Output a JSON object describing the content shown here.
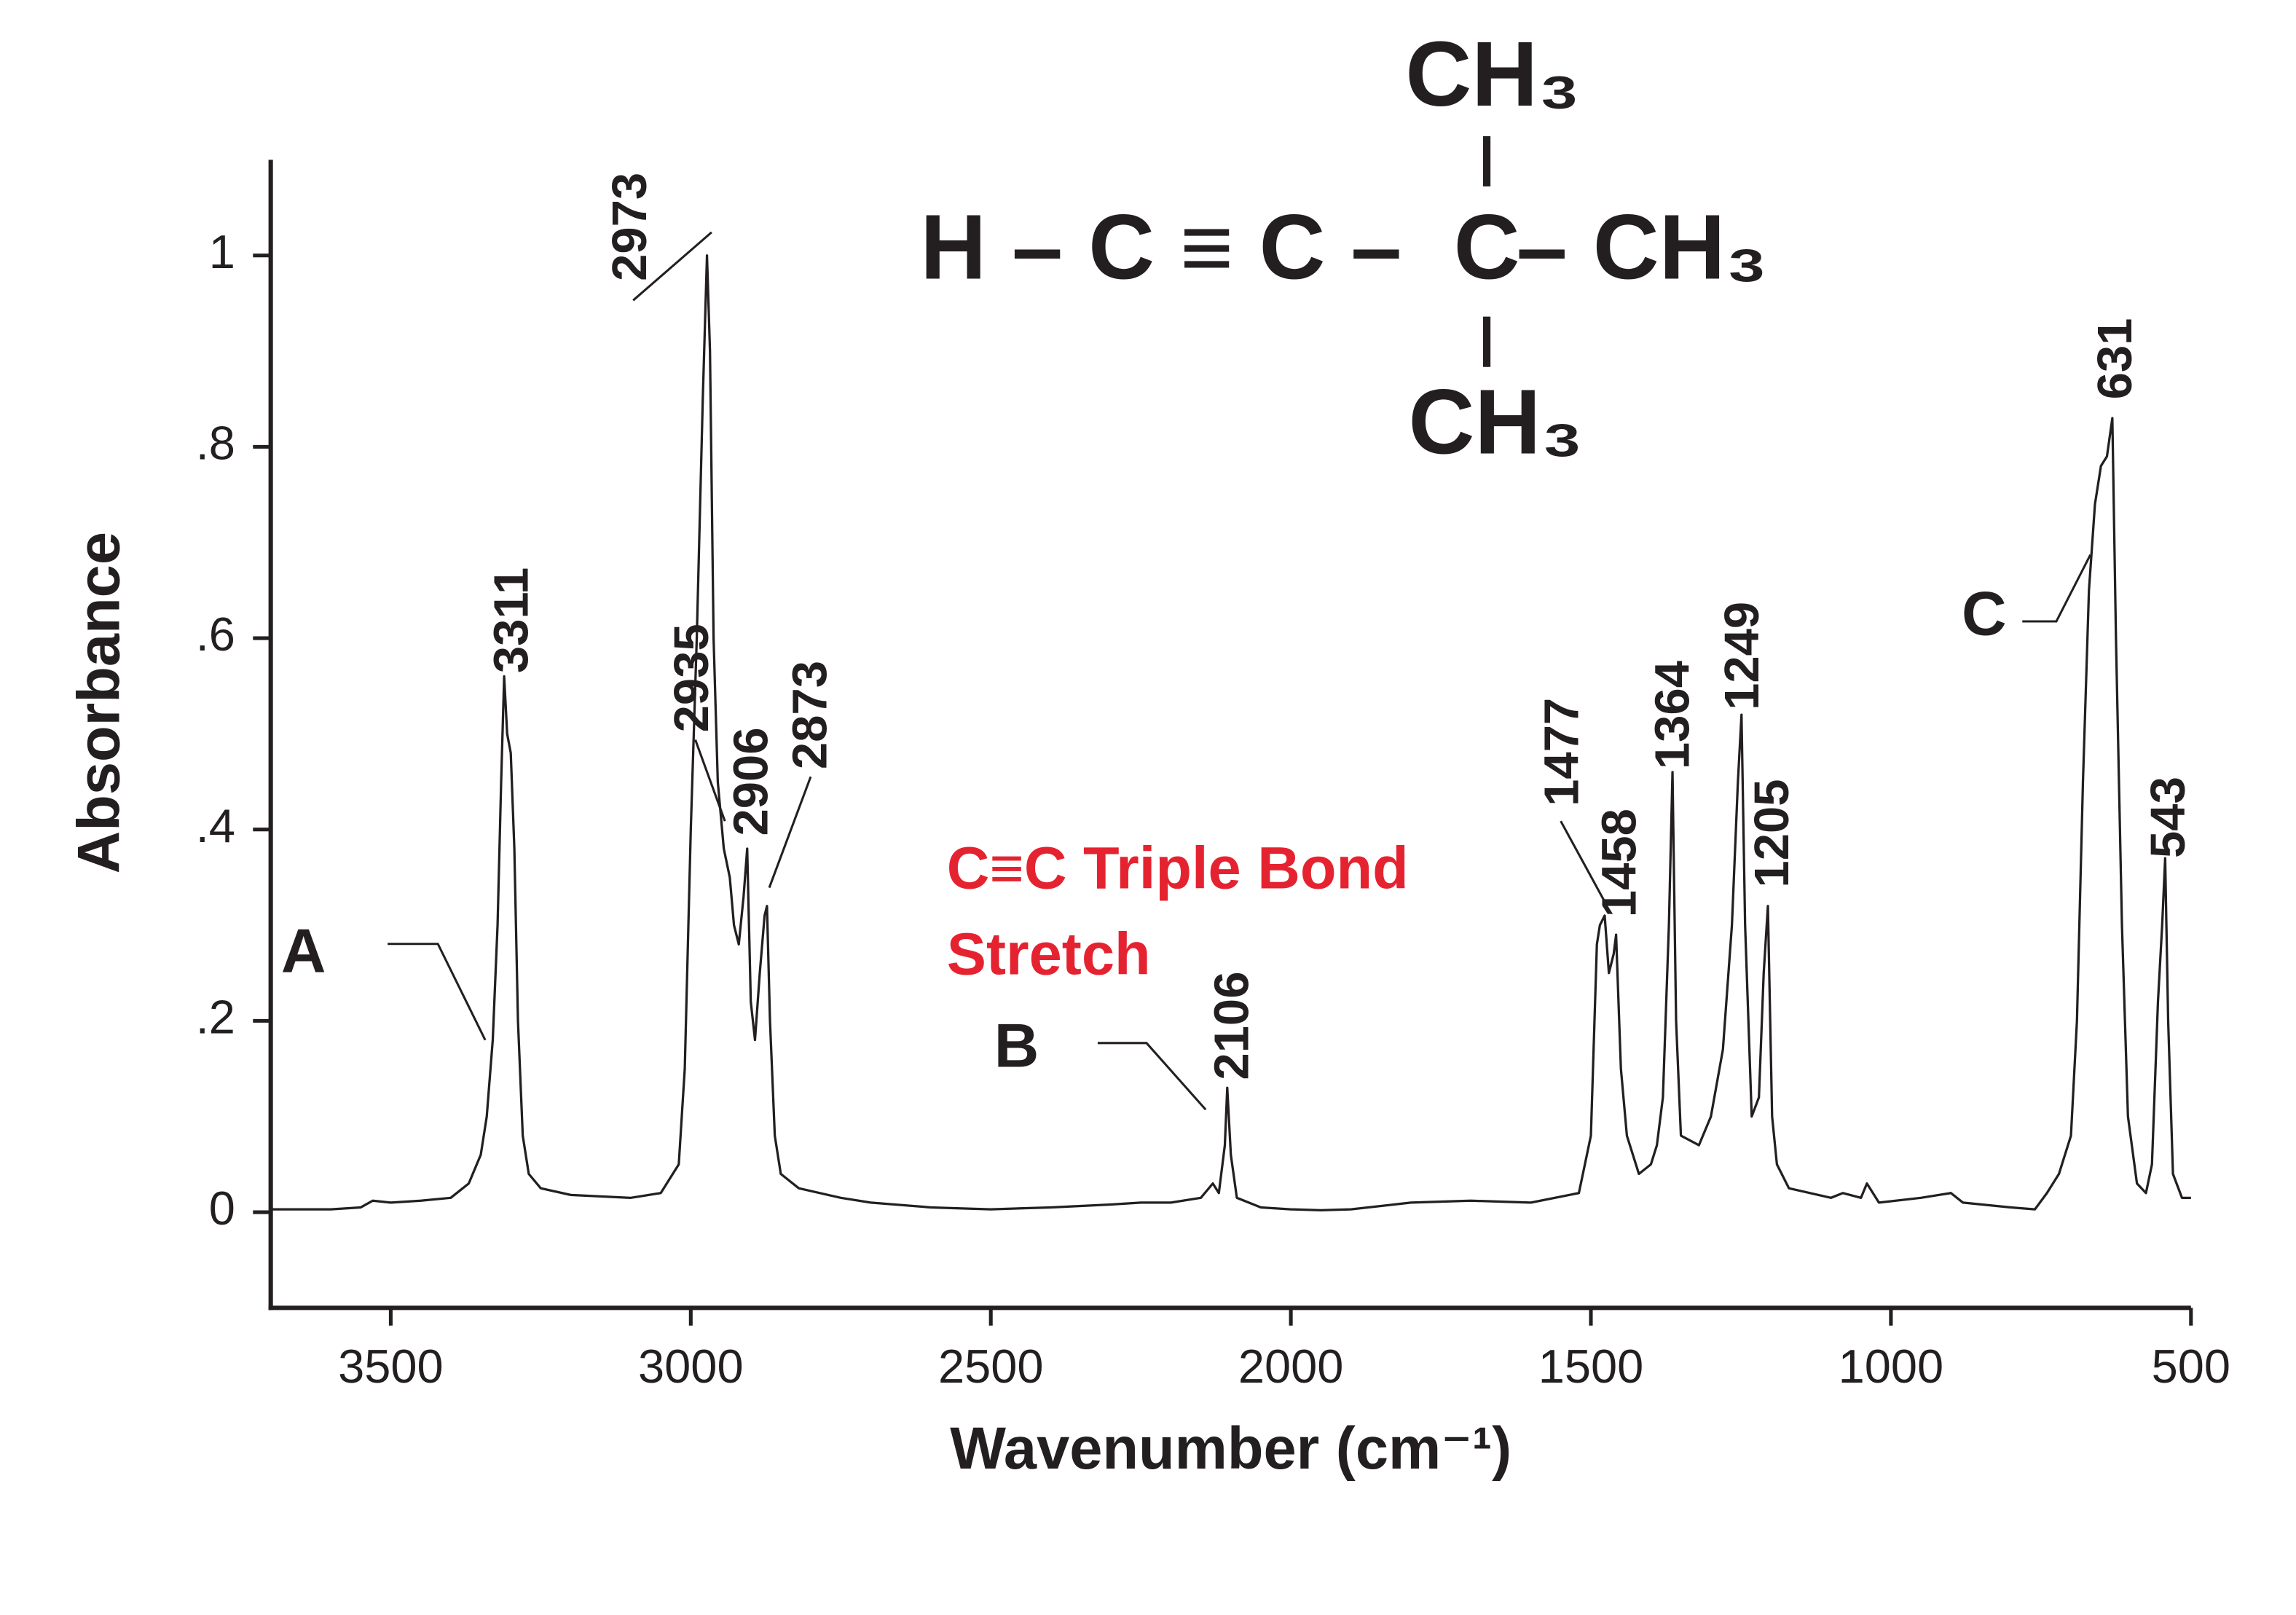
{
  "chart_data": {
    "type": "line",
    "x_label": "Wavenumber (cm⁻¹)",
    "y_label": "Absorbance",
    "xlim": [
      3700,
      500
    ],
    "xticks": [
      3500,
      3000,
      2500,
      2000,
      1500,
      1000,
      500
    ],
    "ylim": [
      -0.1,
      1.1
    ],
    "yticks": [
      0,
      {
        "value": 0.2,
        "label": ".2"
      },
      {
        "value": 0.4,
        "label": ".4"
      },
      {
        "value": 0.6,
        "label": ".6"
      },
      {
        "value": 0.8,
        "label": ".8"
      },
      1
    ],
    "color": "#231f20",
    "x": [
      3700,
      3600,
      3550,
      3530,
      3500,
      3450,
      3400,
      3370,
      3350,
      3340,
      3330,
      3322,
      3316,
      3311,
      3306,
      3300,
      3294,
      3288,
      3280,
      3270,
      3250,
      3200,
      3100,
      3050,
      3020,
      3010,
      3000,
      2990,
      2980,
      2973,
      2968,
      2962,
      2955,
      2945,
      2935,
      2928,
      2920,
      2912,
      2906,
      2900,
      2893,
      2885,
      2877,
      2873,
      2868,
      2860,
      2850,
      2820,
      2750,
      2700,
      2600,
      2500,
      2400,
      2300,
      2250,
      2200,
      2150,
      2130,
      2120,
      2110,
      2106,
      2100,
      2090,
      2050,
      2000,
      1950,
      1900,
      1800,
      1700,
      1600,
      1520,
      1500,
      1490,
      1485,
      1477,
      1470,
      1462,
      1458,
      1450,
      1440,
      1420,
      1400,
      1390,
      1380,
      1370,
      1364,
      1358,
      1350,
      1320,
      1300,
      1280,
      1265,
      1255,
      1249,
      1243,
      1232,
      1220,
      1212,
      1205,
      1198,
      1190,
      1170,
      1100,
      1080,
      1050,
      1040,
      1020,
      950,
      900,
      880,
      800,
      760,
      740,
      720,
      700,
      690,
      680,
      670,
      660,
      650,
      640,
      631,
      625,
      615,
      605,
      590,
      575,
      565,
      555,
      548,
      543,
      538,
      530,
      515,
      500
    ],
    "values": [
      0.003,
      0.003,
      0.005,
      0.012,
      0.01,
      0.012,
      0.015,
      0.03,
      0.06,
      0.1,
      0.18,
      0.3,
      0.45,
      0.56,
      0.5,
      0.48,
      0.38,
      0.2,
      0.08,
      0.04,
      0.025,
      0.018,
      0.015,
      0.02,
      0.05,
      0.15,
      0.4,
      0.6,
      0.85,
      1.0,
      0.9,
      0.6,
      0.45,
      0.38,
      0.35,
      0.3,
      0.28,
      0.33,
      0.38,
      0.22,
      0.18,
      0.25,
      0.31,
      0.32,
      0.2,
      0.08,
      0.04,
      0.025,
      0.015,
      0.01,
      0.005,
      0.003,
      0.005,
      0.008,
      0.01,
      0.01,
      0.015,
      0.03,
      0.02,
      0.07,
      0.13,
      0.06,
      0.015,
      0.005,
      0.003,
      0.002,
      0.003,
      0.01,
      0.012,
      0.01,
      0.02,
      0.08,
      0.28,
      0.3,
      0.31,
      0.25,
      0.27,
      0.29,
      0.15,
      0.08,
      0.04,
      0.05,
      0.07,
      0.12,
      0.3,
      0.46,
      0.2,
      0.08,
      0.07,
      0.1,
      0.17,
      0.3,
      0.45,
      0.52,
      0.3,
      0.1,
      0.12,
      0.25,
      0.32,
      0.1,
      0.05,
      0.025,
      0.015,
      0.02,
      0.015,
      0.03,
      0.01,
      0.015,
      0.02,
      0.01,
      0.005,
      0.003,
      0.02,
      0.04,
      0.08,
      0.2,
      0.45,
      0.65,
      0.74,
      0.78,
      0.79,
      0.83,
      0.6,
      0.3,
      0.1,
      0.03,
      0.02,
      0.05,
      0.22,
      0.3,
      0.37,
      0.2,
      0.04,
      0.015,
      0.015
    ],
    "peak_labels": [
      3311,
      2973,
      2935,
      2906,
      2873,
      2106,
      1477,
      1458,
      1364,
      1249,
      1205,
      631,
      543
    ],
    "region_labels": [
      "A",
      "B",
      "C"
    ],
    "highlight_text": [
      "C≡C Triple Bond",
      "Stretch"
    ],
    "structure": {
      "main": [
        "H – C ≡ C –",
        "C",
        "– CH₃"
      ],
      "top": "CH₃",
      "bottom": "CH₃"
    }
  }
}
